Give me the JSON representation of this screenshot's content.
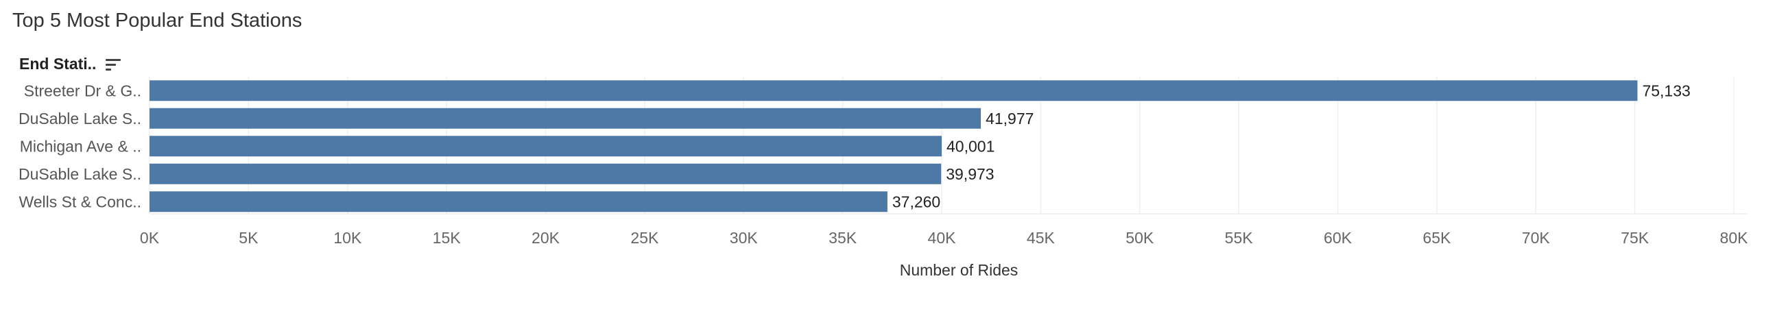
{
  "chart_data": {
    "type": "bar",
    "orientation": "horizontal",
    "title": "Top 5 Most Popular End Stations",
    "dimension_header": "End Stati..",
    "categories": [
      "Streeter Dr & G..",
      "DuSable Lake S..",
      "Michigan Ave & ..",
      "DuSable Lake S..",
      "Wells St & Conc.."
    ],
    "values": [
      75133,
      41977,
      40001,
      39973,
      37260
    ],
    "value_labels": [
      "75,133",
      "41,977",
      "40,001",
      "39,973",
      "37,260"
    ],
    "xlabel": "Number of Rides",
    "xlim": [
      0,
      80000
    ],
    "x_ticks": [
      0,
      5000,
      10000,
      15000,
      20000,
      25000,
      30000,
      35000,
      40000,
      45000,
      50000,
      55000,
      60000,
      65000,
      70000,
      75000,
      80000
    ],
    "x_tick_labels": [
      "0K",
      "5K",
      "10K",
      "15K",
      "20K",
      "25K",
      "30K",
      "35K",
      "40K",
      "45K",
      "50K",
      "55K",
      "60K",
      "65K",
      "70K",
      "75K",
      "80K"
    ],
    "bar_color": "#4e79a7",
    "grid": true,
    "legend": "none"
  }
}
